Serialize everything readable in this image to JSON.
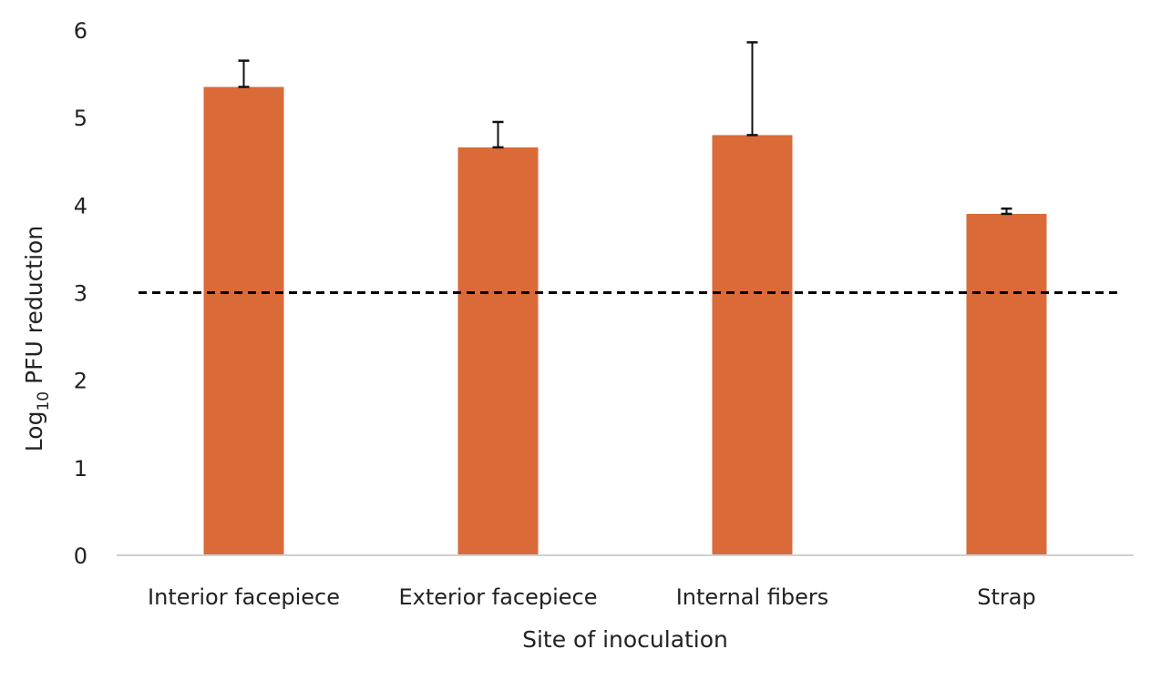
{
  "chart_data": {
    "type": "bar",
    "title": "",
    "xlabel": "Site of inoculation",
    "ylabel": "Log10 PFU reduction",
    "ylabel_parts": {
      "main": "Log",
      "sub": "10",
      "rest": " PFU reduction"
    },
    "categories": [
      "Interior facepiece",
      "Exterior facepiece",
      "Internal fibers",
      "Strap"
    ],
    "values": [
      5.35,
      4.66,
      4.8,
      3.9
    ],
    "error_upper": [
      0.3,
      0.29,
      1.06,
      0.06
    ],
    "ylim": [
      0,
      6
    ],
    "yticks": [
      0,
      1,
      2,
      3,
      4,
      5,
      6
    ],
    "grid": false,
    "legend": null,
    "reference_line": {
      "y": 3,
      "style": "dashed",
      "color": "#000000"
    },
    "colors": {
      "bar": "#DA6A38",
      "axis": "#D0D0D0",
      "error_bar": "#111111"
    }
  }
}
